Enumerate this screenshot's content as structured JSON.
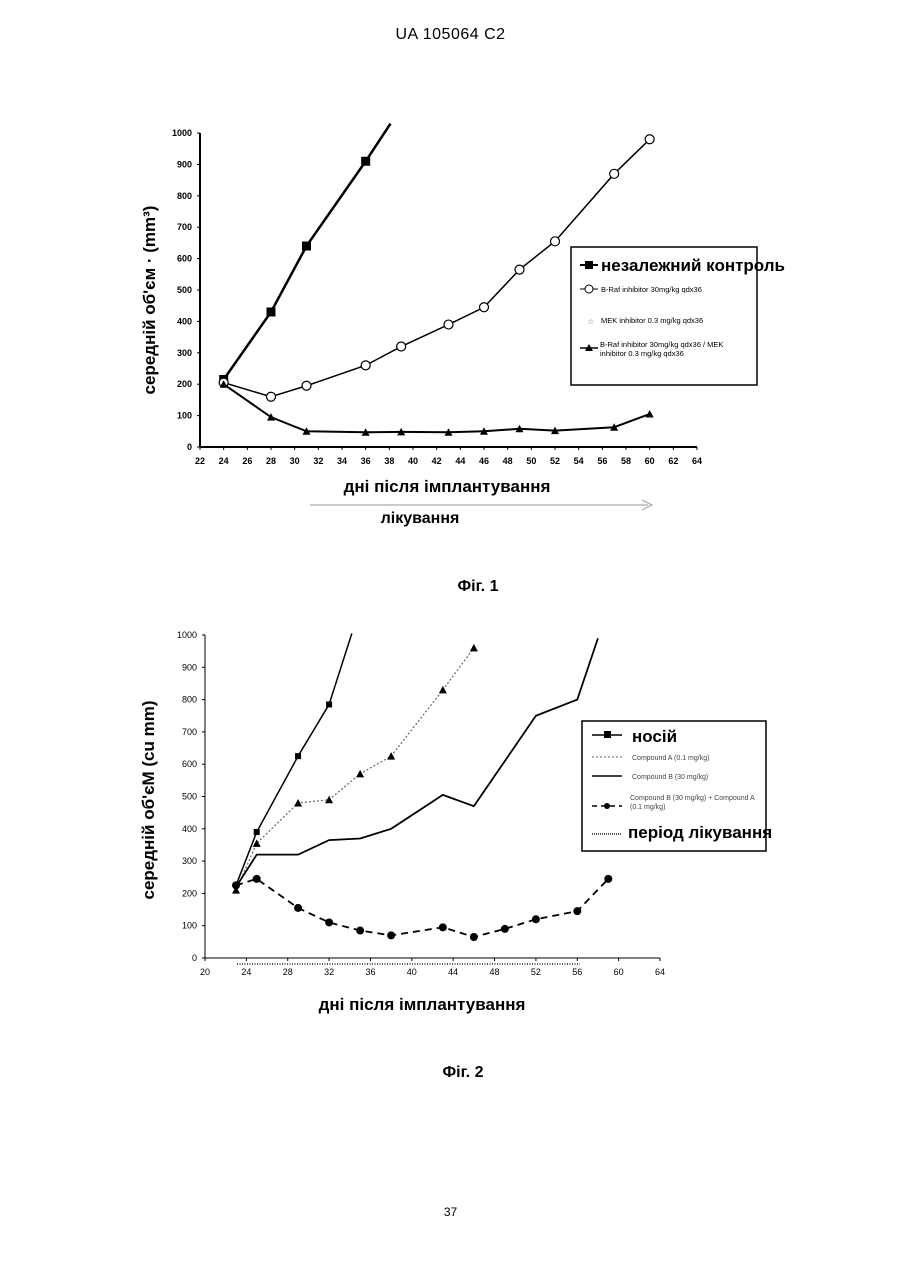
{
  "header": {
    "text": "UA   105064   C2"
  },
  "footer": {
    "page_number": "37"
  },
  "figures": [
    {
      "caption": "Фіг. 1"
    },
    {
      "caption": "Фіг. 2"
    }
  ],
  "chart_data": [
    {
      "type": "line",
      "ylabel": "середній об'єм · (mm³)",
      "xlabel": "дні після імплантування",
      "treatment_label": "лікування",
      "xlim": [
        22,
        64
      ],
      "ylim": [
        0,
        1000
      ],
      "x_ticks": [
        "22",
        "24",
        "26",
        "28",
        "30",
        "32",
        "34",
        "36",
        "38",
        "40",
        "42",
        "44",
        "46",
        "48",
        "50",
        "52",
        "54",
        "56",
        "58",
        "60",
        "62",
        "64"
      ],
      "y_ticks": [
        "0",
        "100",
        "200",
        "300",
        "400",
        "500",
        "600",
        "700",
        "800",
        "900",
        "1000"
      ],
      "legend_position": "right",
      "series": [
        {
          "name": "незалежний контроль",
          "marker": "square",
          "x": [
            24,
            28,
            31,
            36
          ],
          "values": [
            215,
            430,
            640,
            910
          ]
        },
        {
          "name": "B-Raf inhibitor 30mg/kg qdx36",
          "marker": "circle",
          "x": [
            24,
            28,
            31,
            36,
            39,
            43,
            46,
            49,
            52,
            57,
            60
          ],
          "values": [
            205,
            160,
            195,
            260,
            320,
            390,
            445,
            565,
            655,
            870,
            980
          ]
        },
        {
          "name": "MEK inhibitor 0.3 mg/kg qdx36",
          "marker": "star",
          "x": [],
          "values": []
        },
        {
          "name": "B-Raf inhibitor 30mg/kg qdx36 / MEK inhibitor 0.3 mg/kg qdx36",
          "marker": "triangle",
          "x": [
            24,
            28,
            31,
            36,
            39,
            43,
            46,
            49,
            52,
            57,
            60
          ],
          "values": [
            200,
            95,
            50,
            47,
            48,
            47,
            50,
            58,
            52,
            63,
            105
          ]
        }
      ]
    },
    {
      "type": "line",
      "ylabel": "середній об'єМ    (cu mm)",
      "xlabel": "дні після імплантування",
      "xlim": [
        20,
        64
      ],
      "ylim": [
        0,
        1000
      ],
      "x_ticks": [
        "20",
        "24",
        "28",
        "32",
        "36",
        "40",
        "44",
        "48",
        "52",
        "56",
        "60",
        "64"
      ],
      "y_ticks": [
        "0",
        "100",
        "200",
        "300",
        "400",
        "500",
        "600",
        "700",
        "800",
        "900",
        "1000"
      ],
      "legend_position": "right",
      "series": [
        {
          "name": "носій",
          "marker": "square",
          "style": "solid",
          "x": [
            23,
            25,
            29,
            32
          ],
          "values": [
            225,
            390,
            625,
            785
          ]
        },
        {
          "name": "Compound A (0.1 mg/kg)",
          "marker": "triangle",
          "style": "dotted",
          "x": [
            23,
            25,
            29,
            32,
            35,
            38,
            43,
            46
          ],
          "values": [
            210,
            355,
            480,
            490,
            570,
            625,
            830,
            960
          ]
        },
        {
          "name": "Compound B (30 mg/kg)",
          "marker": "none",
          "style": "solid",
          "x": [
            23,
            25,
            29,
            32,
            35,
            38,
            43,
            46,
            49,
            52,
            56,
            58
          ],
          "values": [
            220,
            320,
            320,
            365,
            370,
            400,
            505,
            470,
            610,
            750,
            800,
            990
          ]
        },
        {
          "name": "Compound B (30 mg/kg) + Compound A (0.1 mg/kg)",
          "marker": "circle",
          "style": "dashed",
          "x": [
            23,
            25,
            29,
            32,
            35,
            38,
            43,
            46,
            49,
            52,
            56,
            59
          ],
          "values": [
            225,
            245,
            155,
            110,
            85,
            70,
            95,
            65,
            90,
            120,
            145,
            245
          ]
        },
        {
          "name": "період лікування",
          "marker": "none",
          "style": "hatched",
          "x": [],
          "values": []
        }
      ]
    }
  ]
}
